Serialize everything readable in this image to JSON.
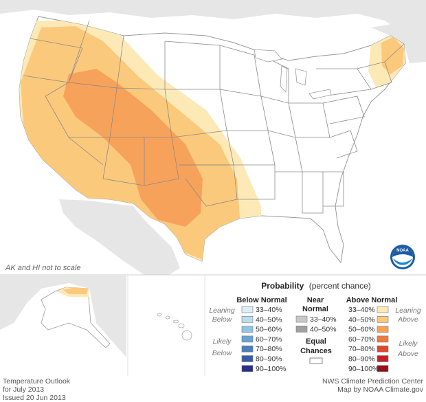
{
  "map": {
    "note": "AK and HI not to scale",
    "colors": {
      "land_bg": "#e6e6e6",
      "water": "#ffffff",
      "state_line": "#888888",
      "a33": "#fde9b6",
      "a40": "#fbc97c",
      "a50": "#f7a25a"
    }
  },
  "legend": {
    "title": "Probability",
    "title_suffix": "(percent chance)",
    "below_header": "Below Normal",
    "near_header_1": "Near",
    "near_header_2": "Normal",
    "above_header": "Above Normal",
    "leaning_1": "Leaning",
    "leaning_2": "Below",
    "likely_1": "Likely",
    "likely_2": "Below",
    "leaning_above_1": "Leaning",
    "leaning_above_2": "Above",
    "likely_above_1": "Likely",
    "likely_above_2": "Above",
    "equal_1": "Equal",
    "equal_2": "Chances",
    "below": [
      {
        "label": "33–40%",
        "color": "#dbeef9"
      },
      {
        "label": "40–50%",
        "color": "#b9dcf0"
      },
      {
        "label": "50–60%",
        "color": "#93c3e3"
      },
      {
        "label": "60–70%",
        "color": "#6aa2d2"
      },
      {
        "label": "70–80%",
        "color": "#4d7fbd"
      },
      {
        "label": "80–90%",
        "color": "#3b5aa6"
      },
      {
        "label": "90–100%",
        "color": "#2a2e8a"
      }
    ],
    "near": [
      {
        "label": "33–40%",
        "color": "#c8c8c8"
      },
      {
        "label": "40–50%",
        "color": "#a0a0a0"
      }
    ],
    "above": [
      {
        "label": "33–40%",
        "color": "#fde9b6"
      },
      {
        "label": "40–50%",
        "color": "#fbc97c"
      },
      {
        "label": "50–60%",
        "color": "#f7a25a"
      },
      {
        "label": "60–70%",
        "color": "#f07a3e"
      },
      {
        "label": "70–80%",
        "color": "#e0482d"
      },
      {
        "label": "80–90%",
        "color": "#c62026"
      },
      {
        "label": "90–100%",
        "color": "#9a0d1c"
      }
    ]
  },
  "footer": {
    "left_1": "Temperature Outlook",
    "left_2": "for July 2013",
    "left_3": "Issued 20 Jun 2013",
    "right_1": "NWS Climate Prediction Center",
    "right_2": "Map by NOAA Climate.gov"
  },
  "logo": {
    "text": "NOAA"
  }
}
